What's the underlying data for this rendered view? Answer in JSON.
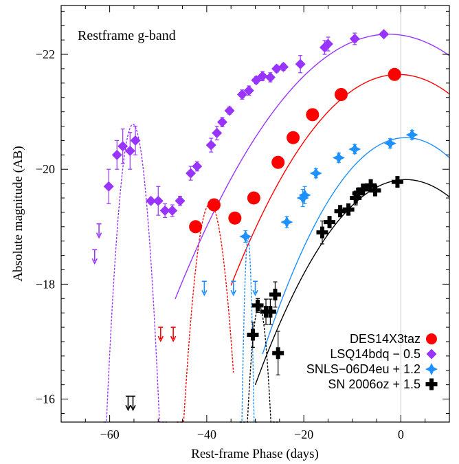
{
  "chart_data": {
    "type": "scatter",
    "title": "Restframe g-band",
    "xlabel": "Rest-frame Phase (days)",
    "ylabel": "Absolute magnitude (AB)",
    "xlim": [
      -70,
      10
    ],
    "ylim": [
      -15.6,
      -22.85
    ],
    "y_inverted": true,
    "x_ticks": [
      -60,
      -40,
      -20,
      0
    ],
    "x_tick_labels": [
      "−60",
      "−40",
      "−20",
      "0"
    ],
    "y_ticks": [
      -16,
      -18,
      -20,
      -22
    ],
    "y_tick_labels": [
      "−16",
      "−18",
      "−20",
      "−22"
    ],
    "grid": false,
    "legend_position": "bottom-right",
    "reference_line_x": 0,
    "series": [
      {
        "name": "DES14X3taz",
        "color": "#ff0000",
        "marker": "circle",
        "points": [
          [
            -42.3,
            -19.0
          ],
          [
            -38.5,
            -19.38
          ],
          [
            -34.2,
            -19.15
          ],
          [
            -30.3,
            -19.5
          ],
          [
            -25.3,
            -20.12
          ],
          [
            -22.2,
            -20.55
          ],
          [
            -18.2,
            -20.95
          ],
          [
            -12.3,
            -21.3
          ],
          [
            -1.3,
            -21.65
          ]
        ],
        "errors": [
          0.05,
          0.05,
          0.05,
          0.06,
          0.05,
          0.05,
          0.05,
          0.05,
          0.05
        ],
        "upper_limits": [
          [
            -49.5,
            -17.25
          ],
          [
            -46.9,
            -17.25
          ]
        ],
        "fit_solid": {
          "x_start": -35,
          "x_end": 10,
          "peak_x": -0.5,
          "peak_y": -21.65,
          "width": 18
        },
        "fit_dashed": {
          "x_start": -46.2,
          "x_end": -34.5,
          "peak_x": -39.3,
          "peak_y": -19.4,
          "width": 2.8
        }
      },
      {
        "name": "LSQ14bdq − 0.5",
        "color": "#9933ff",
        "marker": "diamond",
        "points": [
          [
            -60.2,
            -19.7
          ],
          [
            -58.5,
            -20.25
          ],
          [
            -57.3,
            -20.4
          ],
          [
            -55.8,
            -20.32
          ],
          [
            -54.7,
            -20.5
          ],
          [
            -51.5,
            -19.45
          ],
          [
            -50.0,
            -19.45
          ],
          [
            -48.6,
            -19.28
          ],
          [
            -47.1,
            -19.28
          ],
          [
            -45.5,
            -19.45
          ],
          [
            -43.3,
            -19.93
          ],
          [
            -42.0,
            -20.05
          ],
          [
            -39.1,
            -20.42
          ],
          [
            -37.9,
            -20.63
          ],
          [
            -36.8,
            -20.82
          ],
          [
            -35.3,
            -21.02
          ],
          [
            -32.7,
            -21.3
          ],
          [
            -31.3,
            -21.37
          ],
          [
            -29.8,
            -21.55
          ],
          [
            -28.5,
            -21.62
          ],
          [
            -26.9,
            -21.6
          ],
          [
            -25.6,
            -21.75
          ],
          [
            -24.2,
            -21.78
          ],
          [
            -20.7,
            -21.83
          ],
          [
            -15.7,
            -22.12
          ],
          [
            -15.0,
            -22.18
          ],
          [
            -9.5,
            -22.27
          ],
          [
            -3.5,
            -22.35
          ]
        ],
        "errors": [
          0.3,
          0.25,
          0.3,
          0.32,
          0.25,
          0.05,
          0.25,
          0.12,
          0.1,
          0.08,
          0.12,
          0.08,
          0.12,
          0.12,
          0.08,
          0.06,
          0.08,
          0.08,
          0.06,
          0.08,
          0.08,
          0.06,
          0.06,
          0.15,
          0.12,
          0.12,
          0.1,
          0.05
        ],
        "upper_limits": [
          [
            -63.1,
            -18.6
          ],
          [
            -62.2,
            -19.05
          ]
        ],
        "fit_solid": {
          "x_start": -46.5,
          "x_end": 10,
          "peak_x": -2.5,
          "peak_y": -22.35,
          "width": 20.5
        },
        "fit_dashed": {
          "x_start": -61.2,
          "x_end": -48.2,
          "peak_x": -55.2,
          "peak_y": -20.78,
          "width": 2.4
        }
      },
      {
        "name": "SNLS−06D4eu + 1.2",
        "color": "#1e90ff",
        "marker": "star",
        "points": [
          [
            -32.0,
            -18.83
          ],
          [
            -23.5,
            -19.08
          ],
          [
            -20.2,
            -19.5
          ],
          [
            -19.8,
            -19.55
          ],
          [
            -17.5,
            -19.93
          ],
          [
            -12.8,
            -20.2
          ],
          [
            -9.5,
            -20.35
          ],
          [
            -2.2,
            -20.45
          ],
          [
            2.3,
            -20.6
          ]
        ],
        "errors": [
          0.1,
          0.1,
          0.15,
          0.15,
          0.08,
          0.08,
          0.08,
          0.08,
          0.08
        ],
        "upper_limits": [
          [
            -40.5,
            -18.05
          ],
          [
            -34.5,
            -18.05
          ],
          [
            -30.0,
            -18.05
          ]
        ],
        "fit_solid": {
          "x_start": -28.5,
          "x_end": 10,
          "peak_x": 1,
          "peak_y": -20.55,
          "width": 15.2
        },
        "fit_dashed": {
          "x_start": -33.2,
          "x_end": -29.6,
          "peak_x": -31.5,
          "peak_y": -18.8,
          "width": 0.7
        }
      },
      {
        "name": "SN 2006oz + 1.5",
        "color": "#000000",
        "marker": "cross",
        "points": [
          [
            -30.5,
            -17.12
          ],
          [
            -29.5,
            -17.63
          ],
          [
            -27.8,
            -17.52
          ],
          [
            -25.3,
            -16.8
          ],
          [
            -26.9,
            -17.52
          ],
          [
            -25.9,
            -17.82
          ],
          [
            -16.2,
            -18.9
          ],
          [
            -14.7,
            -19.08
          ],
          [
            -12.5,
            -19.27
          ],
          [
            -10.8,
            -19.3
          ],
          [
            -9.3,
            -19.5
          ],
          [
            -8.8,
            -19.58
          ],
          [
            -7.8,
            -19.65
          ],
          [
            -6.2,
            -19.72
          ],
          [
            -5.3,
            -19.63
          ],
          [
            -0.7,
            -19.78
          ]
        ],
        "errors": [
          0.22,
          0.12,
          0.22,
          0.38,
          0.22,
          0.22,
          0.2,
          0.1,
          0.1,
          0.1,
          0.12,
          0.08,
          0.08,
          0.1,
          0.08,
          0.08
        ],
        "upper_limits": [
          [
            -56.2,
            -16.05
          ],
          [
            -55.2,
            -16.05
          ]
        ],
        "fit_solid": {
          "x_start": -30,
          "x_end": 10,
          "peak_x": 1,
          "peak_y": -19.82,
          "width": 16.4
        },
        "fit_dashed": {
          "x_start": -33.2,
          "x_end": -25.3,
          "peak_x": -29.2,
          "peak_y": -17.62,
          "width": 1.7
        }
      }
    ]
  }
}
